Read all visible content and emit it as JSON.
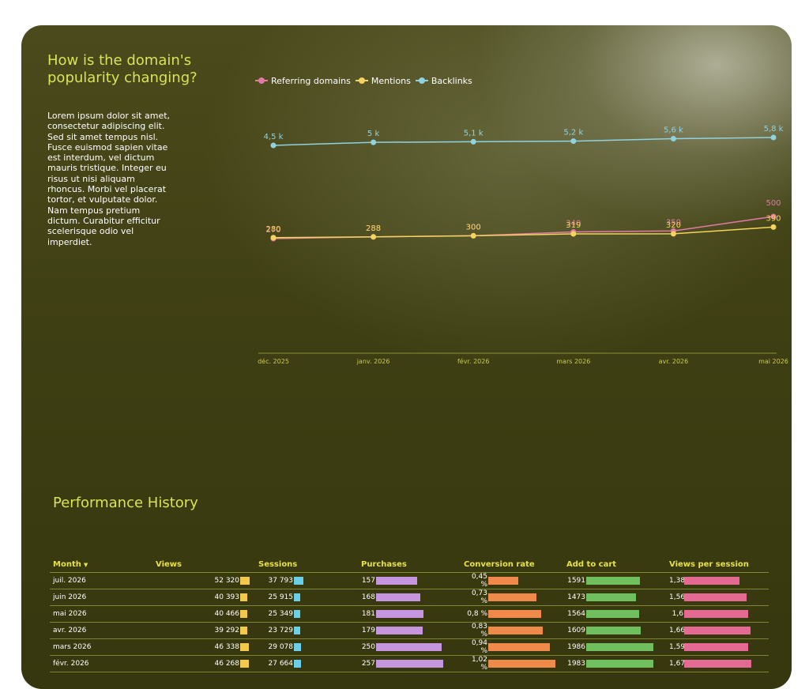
{
  "header": {
    "title": "How is the domain's popularity changing?",
    "description": "Lorem ipsum dolor sit amet, consectetur adipiscing elit. Sed sit amet tempus nisl. Fusce euismod sapien vitae est interdum, vel dictum mauris tristique. Integer eu risus ut nisi aliquam rhoncus. Morbi vel placerat tortor, et vulputate dolor. Nam tempus pretium dictum. Curabitur efficitur scelerisque odio vel imperdiet."
  },
  "chart_data": {
    "type": "line",
    "x": [
      "déc. 2025",
      "janv. 2026",
      "févr. 2026",
      "mars 2026",
      "avr. 2026",
      "mai 2026"
    ],
    "grid": false,
    "legend_position": "top-left",
    "series": [
      {
        "name": "Referring domains",
        "color": "#e27aa5",
        "values": [
          270,
          288,
          300,
          340,
          350,
          500
        ],
        "labels": [
          "270",
          "288",
          "300",
          "340",
          "350",
          "500"
        ]
      },
      {
        "name": "Mentions",
        "color": "#f4d35e",
        "values": [
          280,
          288,
          300,
          319,
          320,
          390
        ],
        "labels": [
          "280",
          "288",
          "300",
          "319",
          "320",
          "390"
        ]
      },
      {
        "name": "Backlinks",
        "color": "#8fd3e0",
        "values": [
          4500,
          5000,
          5100,
          5200,
          5600,
          5800
        ],
        "labels": [
          "4,5 k",
          "5 k",
          "5,1 k",
          "5,2 k",
          "5,6 k",
          "5,8 k"
        ]
      }
    ]
  },
  "table": {
    "title": "Performance History",
    "sort_icon": "triangle-down",
    "columns": [
      {
        "label": "Month",
        "bar_color": null,
        "max": null
      },
      {
        "label": "Views",
        "bar_color": "#f2c94c",
        "max": 52320
      },
      {
        "label": "Sessions",
        "bar_color": "#6ccfe8",
        "max": 37793
      },
      {
        "label": "Purchases",
        "bar_color": "#c596dd",
        "max": 257
      },
      {
        "label": "Conversion rate",
        "bar_color": "#f08a4b",
        "max": 1.02
      },
      {
        "label": "Add to cart",
        "bar_color": "#6fbf5e",
        "max": 1986
      },
      {
        "label": "Views per session",
        "bar_color": "#e46a93",
        "max": 1.67
      }
    ],
    "rows": [
      {
        "month": "juil. 2026",
        "views": "52 320",
        "views_v": 52320,
        "sessions": "37 793",
        "sessions_v": 37793,
        "purchases": "157",
        "purchases_v": 157,
        "conv": "0,45 %",
        "conv_v": 0.45,
        "cart": "1591",
        "cart_v": 1591,
        "vps": "1,38",
        "vps_v": 1.38
      },
      {
        "month": "juin 2026",
        "views": "40 393",
        "views_v": 40393,
        "sessions": "25 915",
        "sessions_v": 25915,
        "purchases": "168",
        "purchases_v": 168,
        "conv": "0,73 %",
        "conv_v": 0.73,
        "cart": "1473",
        "cart_v": 1473,
        "vps": "1,56",
        "vps_v": 1.56
      },
      {
        "month": "mai 2026",
        "views": "40 466",
        "views_v": 40466,
        "sessions": "25 349",
        "sessions_v": 25349,
        "purchases": "181",
        "purchases_v": 181,
        "conv": "0,8 %",
        "conv_v": 0.8,
        "cart": "1564",
        "cart_v": 1564,
        "vps": "1,6",
        "vps_v": 1.6
      },
      {
        "month": "avr. 2026",
        "views": "39 292",
        "views_v": 39292,
        "sessions": "23 729",
        "sessions_v": 23729,
        "purchases": "179",
        "purchases_v": 179,
        "conv": "0,83 %",
        "conv_v": 0.83,
        "cart": "1609",
        "cart_v": 1609,
        "vps": "1,66",
        "vps_v": 1.66
      },
      {
        "month": "mars 2026",
        "views": "46 338",
        "views_v": 46338,
        "sessions": "29 078",
        "sessions_v": 29078,
        "purchases": "250",
        "purchases_v": 250,
        "conv": "0,94 %",
        "conv_v": 0.94,
        "cart": "1986",
        "cart_v": 1986,
        "vps": "1,59",
        "vps_v": 1.59
      },
      {
        "month": "févr. 2026",
        "views": "46 268",
        "views_v": 46268,
        "sessions": "27 664",
        "sessions_v": 27664,
        "purchases": "257",
        "purchases_v": 257,
        "conv": "1,02 %",
        "conv_v": 1.02,
        "cart": "1983",
        "cart_v": 1983,
        "vps": "1,67",
        "vps_v": 1.67
      }
    ]
  }
}
